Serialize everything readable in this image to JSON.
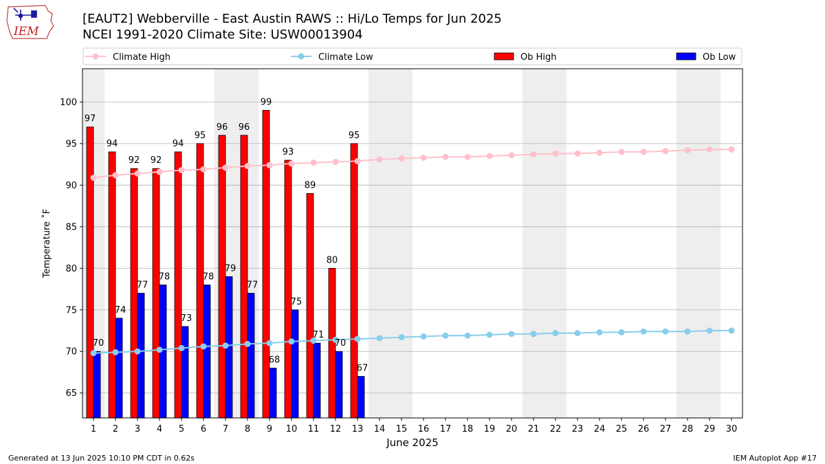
{
  "header": {
    "logo_text": "IEM",
    "title_line1": "[EAUT2] Webberville - East Austin RAWS :: Hi/Lo Temps for Jun 2025",
    "title_line2": "NCEI 1991-2020 Climate Site: USW00013904"
  },
  "footer": {
    "generated": "Generated at 13 Jun 2025 10:10 PM CDT in 0.62s",
    "app": "IEM Autoplot App #17"
  },
  "chart_data": {
    "type": "bar",
    "xlabel": "June 2025",
    "ylabel": "Temperature ˚F",
    "ylim": [
      62,
      104
    ],
    "xlim": [
      0.5,
      30.5
    ],
    "yticks": [
      65,
      70,
      75,
      80,
      85,
      90,
      95,
      100
    ],
    "grid": "horizontal",
    "legend_position": "top",
    "weekend_shading_days": [
      1,
      7,
      8,
      14,
      15,
      21,
      22,
      28,
      29
    ],
    "days": [
      1,
      2,
      3,
      4,
      5,
      6,
      7,
      8,
      9,
      10,
      11,
      12,
      13,
      14,
      15,
      16,
      17,
      18,
      19,
      20,
      21,
      22,
      23,
      24,
      25,
      26,
      27,
      28,
      29,
      30
    ],
    "series": [
      {
        "name": "Climate High",
        "kind": "line",
        "color": "#ffc0cb",
        "values": [
          90.9,
          91.2,
          91.4,
          91.6,
          91.8,
          91.9,
          92.1,
          92.3,
          92.4,
          92.6,
          92.7,
          92.8,
          92.9,
          93.1,
          93.2,
          93.3,
          93.4,
          93.4,
          93.5,
          93.6,
          93.7,
          93.8,
          93.8,
          93.9,
          94.0,
          94.0,
          94.1,
          94.2,
          94.3,
          94.3
        ]
      },
      {
        "name": "Climate Low",
        "kind": "line",
        "color": "#87ceeb",
        "values": [
          69.8,
          69.9,
          70.0,
          70.2,
          70.4,
          70.6,
          70.7,
          70.9,
          71.0,
          71.2,
          71.3,
          71.4,
          71.5,
          71.6,
          71.7,
          71.8,
          71.9,
          71.9,
          72.0,
          72.1,
          72.1,
          72.2,
          72.2,
          72.3,
          72.3,
          72.4,
          72.4,
          72.4,
          72.5,
          72.5
        ]
      },
      {
        "name": "Ob High",
        "kind": "bar",
        "color": "#ff0000",
        "values": [
          97,
          94,
          92,
          92,
          94,
          95,
          96,
          96,
          99,
          93,
          89,
          80,
          95
        ]
      },
      {
        "name": "Ob Low",
        "kind": "bar",
        "color": "#0000ff",
        "values": [
          70,
          74,
          77,
          78,
          73,
          78,
          79,
          77,
          68,
          75,
          71,
          70,
          67
        ]
      }
    ]
  }
}
